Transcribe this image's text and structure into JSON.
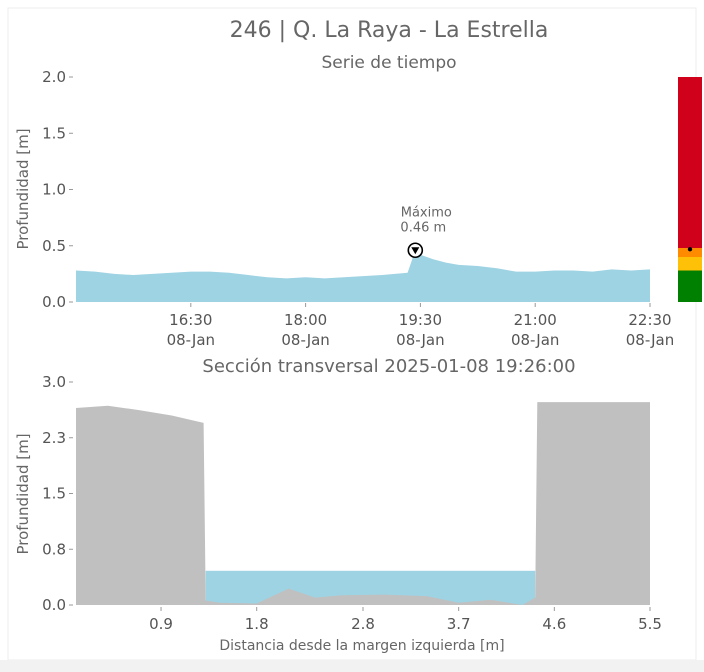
{
  "title": "246 | Q. La Raya - La Estrella",
  "colors": {
    "water": "#9ed3e3",
    "terrain": "#c0c0c0",
    "axis_text": "#555555",
    "title_text": "#666666",
    "risk_red": "#d0021b",
    "risk_orange": "#ff8c00",
    "risk_yellow": "#ffc107",
    "risk_green": "#008000"
  },
  "chart_data": [
    {
      "type": "area",
      "title": "Serie de tiempo",
      "xlabel": "",
      "ylabel": "Profundidad [m]",
      "ylim": [
        0,
        2.0
      ],
      "yticks": [
        "0.0",
        "0.5",
        "1.0",
        "1.5",
        "2.0"
      ],
      "ytick_values": [
        0,
        0.5,
        1.0,
        1.5,
        2.0
      ],
      "xlim_minutes": [
        900,
        1350
      ],
      "xtick_minutes": [
        990,
        1080,
        1170,
        1260,
        1350
      ],
      "xticks": [
        {
          "time": "16:30",
          "date": "08-Jan"
        },
        {
          "time": "18:00",
          "date": "08-Jan"
        },
        {
          "time": "19:30",
          "date": "08-Jan"
        },
        {
          "time": "21:00",
          "date": "08-Jan"
        },
        {
          "time": "22:30",
          "date": "08-Jan"
        }
      ],
      "series": [
        {
          "x": [
            "15:00",
            "15:15",
            "15:30",
            "15:45",
            "16:00",
            "16:15",
            "16:30",
            "16:45",
            "17:00",
            "17:15",
            "17:30",
            "17:45",
            "18:00",
            "18:15",
            "18:30",
            "18:45",
            "19:00",
            "19:10",
            "19:20",
            "19:26",
            "19:30",
            "19:40",
            "19:50",
            "20:00",
            "20:15",
            "20:30",
            "20:45",
            "21:00",
            "21:15",
            "21:30",
            "21:45",
            "22:00",
            "22:15",
            "22:30"
          ],
          "values": [
            0.28,
            0.27,
            0.25,
            0.24,
            0.25,
            0.26,
            0.27,
            0.27,
            0.26,
            0.24,
            0.22,
            0.21,
            0.22,
            0.21,
            0.22,
            0.23,
            0.24,
            0.25,
            0.26,
            0.46,
            0.42,
            0.38,
            0.35,
            0.33,
            0.32,
            0.3,
            0.27,
            0.27,
            0.28,
            0.28,
            0.27,
            0.29,
            0.28,
            0.29
          ]
        }
      ],
      "annotation": {
        "label": "Máximo",
        "value_text": "0.46 m",
        "time": "19:26",
        "value": 0.46
      },
      "risk_bar": {
        "levels": [
          {
            "from": 0.0,
            "to": 0.28,
            "color": "#008000"
          },
          {
            "from": 0.28,
            "to": 0.4,
            "color": "#ffc107"
          },
          {
            "from": 0.4,
            "to": 0.48,
            "color": "#ff8c00"
          },
          {
            "from": 0.48,
            "to": 2.0,
            "color": "#d0021b"
          }
        ],
        "marker": 0.46
      }
    },
    {
      "type": "area",
      "title": "Sección transversal 2025-01-08 19:26:00",
      "xlabel": "Distancia desde la margen izquierda [m]",
      "ylabel": "Profundidad [m]",
      "xlim": [
        0.1,
        5.5
      ],
      "ylim": [
        0,
        3.0
      ],
      "xticks": [
        "0.9",
        "1.8",
        "2.8",
        "3.7",
        "4.6",
        "5.5"
      ],
      "xtick_values": [
        0.9,
        1.8,
        2.8,
        3.7,
        4.6,
        5.5
      ],
      "yticks": [
        "0.0",
        "0.8",
        "1.5",
        "2.3",
        "3.0"
      ],
      "ytick_values": [
        0,
        0.75,
        1.5,
        2.25,
        3.0
      ],
      "terrain": {
        "x": [
          0.1,
          0.4,
          0.7,
          1.0,
          1.3,
          1.32,
          1.45,
          1.8,
          2.1,
          2.35,
          2.6,
          3.0,
          3.4,
          3.7,
          4.0,
          4.3,
          4.42,
          4.44,
          5.5
        ],
        "y": [
          2.65,
          2.68,
          2.62,
          2.55,
          2.45,
          0.06,
          0.03,
          0.02,
          0.22,
          0.1,
          0.13,
          0.14,
          0.12,
          0.03,
          0.07,
          0.0,
          0.1,
          2.73,
          2.73
        ]
      },
      "water_level": 0.46,
      "water_extent": [
        1.32,
        4.42
      ]
    }
  ]
}
